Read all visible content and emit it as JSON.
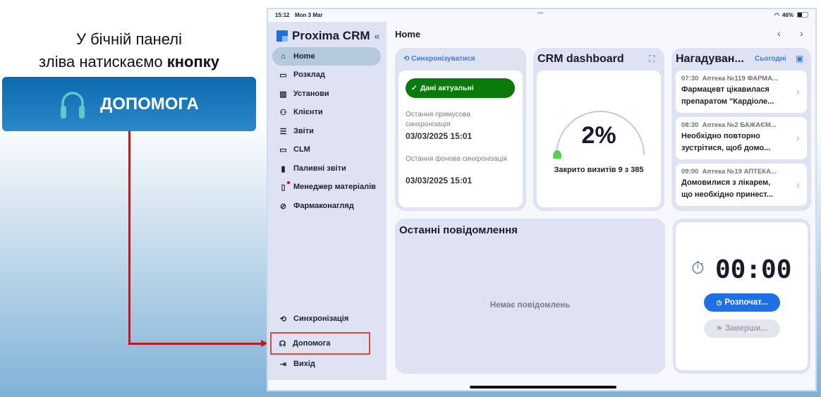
{
  "annotation": {
    "caption_line1": "У бічній панелі",
    "caption_line2": "зліва натискаємо",
    "caption_bold": "кнопку",
    "banner_label": "ДОПОМОГА",
    "banner_icon": "headphones-icon",
    "arrow_color": "#c4161c",
    "highlight_color": "#e0473c"
  },
  "status_bar": {
    "time": "15:12",
    "date": "Mon 3 Mar",
    "battery": "46%"
  },
  "sidebar": {
    "app_name": "Proxima CRM",
    "items": [
      {
        "label": "Home",
        "icon": "home-icon",
        "active": true
      },
      {
        "label": "Розклад",
        "icon": "calendar-icon"
      },
      {
        "label": "Установи",
        "icon": "building-icon"
      },
      {
        "label": "Клієнти",
        "icon": "users-icon"
      },
      {
        "label": "Звіти",
        "icon": "clipboard-icon"
      },
      {
        "label": "CLM",
        "icon": "laptop-icon"
      },
      {
        "label": "Паливні звіти",
        "icon": "fuel-icon"
      },
      {
        "label": "Менеджер матеріалів",
        "icon": "materials-icon",
        "badge": true
      },
      {
        "label": "Фармаконагляд",
        "icon": "pharma-icon"
      }
    ],
    "bottom_items": [
      {
        "label": "Синхронізація",
        "icon": "sync-icon"
      },
      {
        "label": "Допомога",
        "icon": "headphones-icon",
        "highlighted": true
      },
      {
        "label": "Вихід",
        "icon": "logout-icon"
      }
    ]
  },
  "header": {
    "title": "Home"
  },
  "sync_card": {
    "action": "Синхронізуватися",
    "status": "Дані актуальні",
    "forced_label": "Остання примусова синхронізація",
    "forced_value": "03/03/2025 15:01",
    "background_label": "Остання фонова синхронізація",
    "background_value": "03/03/2025 15:01",
    "status_color": "#0a7a0a"
  },
  "crm_card": {
    "title": "CRM dashboard",
    "percent": "2%",
    "progress": 0.02,
    "caption": "Закрито визитів 9 з 385"
  },
  "reminders": {
    "title": "Нагадуван...",
    "filter": "Сьогодні",
    "items": [
      {
        "time": "07:30",
        "place": "Аптека №119 ФАРМА...",
        "text1": "Фармацевт цікавилася",
        "text2": "препаратом \"Кардіоле..."
      },
      {
        "time": "08:30",
        "place": "Аптека №2 БАЖАЄМ...",
        "text1": "Необхідно повторно",
        "text2": "зустрітися, щоб домо..."
      },
      {
        "time": "09:00",
        "place": "Аптека №19 АПТЕКА...",
        "text1": "Домовилися з лікарем,",
        "text2": "що необхідно принест..."
      }
    ]
  },
  "messages": {
    "title": "Останні повідомлення",
    "empty": "Немає повідомлень"
  },
  "timer": {
    "value": "00:00",
    "start": "Розпочат...",
    "finish": "Заверши...",
    "accent": "#1f6fe5"
  }
}
